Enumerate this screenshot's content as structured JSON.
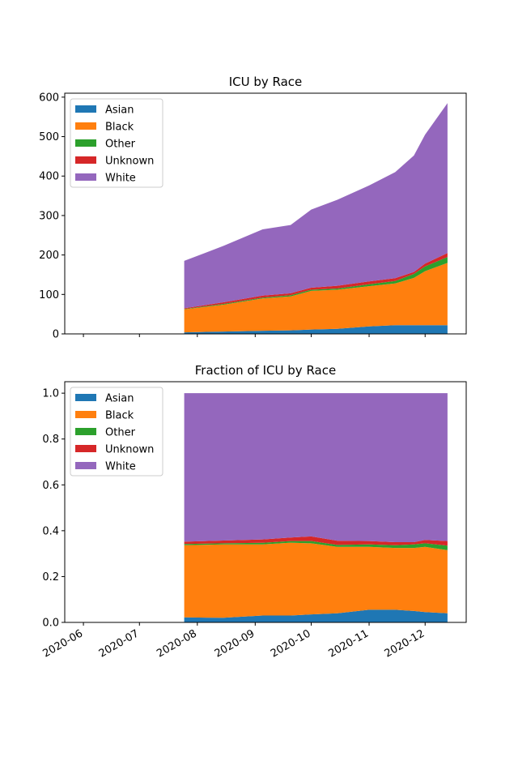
{
  "chart_data": [
    {
      "type": "area",
      "stacked": true,
      "title": "ICU by Race",
      "xlabel": "",
      "ylabel": "",
      "ylim": [
        0,
        610
      ],
      "yticks": [
        0,
        100,
        200,
        300,
        400,
        500,
        600
      ],
      "ytick_labels": [
        "0",
        "100",
        "200",
        "300",
        "400",
        "500",
        "600"
      ],
      "x": [
        "2020-07-25",
        "2020-08-15",
        "2020-09-05",
        "2020-09-20",
        "2020-10-01",
        "2020-10-15",
        "2020-11-01",
        "2020-11-15",
        "2020-11-25",
        "2020-12-01",
        "2020-12-13"
      ],
      "series": [
        {
          "name": "Asian",
          "values": [
            4,
            6,
            8,
            9,
            11,
            13,
            19,
            22,
            22,
            22,
            22
          ]
        },
        {
          "name": "Black",
          "values": [
            58,
            68,
            82,
            86,
            98,
            99,
            102,
            106,
            120,
            137,
            158
          ]
        },
        {
          "name": "Other",
          "values": [
            1,
            2,
            2,
            3,
            3,
            3,
            5,
            6,
            10,
            12,
            15
          ]
        },
        {
          "name": "Unknown",
          "values": [
            2,
            4,
            5,
            5,
            5,
            7,
            7,
            7,
            5,
            7,
            10
          ]
        },
        {
          "name": "White",
          "values": [
            120,
            143,
            168,
            173,
            198,
            218,
            243,
            269,
            295,
            327,
            380
          ]
        }
      ],
      "legend": "top-left",
      "grid": false
    },
    {
      "type": "area",
      "stacked": true,
      "title": "Fraction of ICU by Race",
      "xlabel": "",
      "ylabel": "",
      "ylim": [
        0,
        1.05
      ],
      "yticks": [
        0,
        0.2,
        0.4,
        0.6,
        0.8,
        1.0
      ],
      "ytick_labels": [
        "0.0",
        "0.2",
        "0.4",
        "0.6",
        "0.8",
        "1.0"
      ],
      "x": [
        "2020-07-25",
        "2020-08-15",
        "2020-09-05",
        "2020-09-20",
        "2020-10-01",
        "2020-10-15",
        "2020-11-01",
        "2020-11-15",
        "2020-11-25",
        "2020-12-01",
        "2020-12-13"
      ],
      "series": [
        {
          "name": "Asian",
          "values": [
            0.022,
            0.02,
            0.03,
            0.03,
            0.035,
            0.04,
            0.055,
            0.055,
            0.05,
            0.045,
            0.04
          ]
        },
        {
          "name": "Black",
          "values": [
            0.315,
            0.32,
            0.31,
            0.318,
            0.31,
            0.29,
            0.275,
            0.27,
            0.275,
            0.285,
            0.275
          ]
        },
        {
          "name": "Other",
          "values": [
            0.005,
            0.005,
            0.007,
            0.007,
            0.01,
            0.008,
            0.01,
            0.012,
            0.015,
            0.015,
            0.02
          ]
        },
        {
          "name": "Unknown",
          "values": [
            0.01,
            0.012,
            0.015,
            0.015,
            0.02,
            0.018,
            0.015,
            0.013,
            0.01,
            0.015,
            0.02
          ]
        },
        {
          "name": "White",
          "values": [
            0.648,
            0.643,
            0.638,
            0.63,
            0.625,
            0.644,
            0.645,
            0.65,
            0.65,
            0.64,
            0.645
          ]
        }
      ],
      "legend": "top-left",
      "grid": false
    }
  ],
  "x_axis": {
    "tick_dates": [
      "2020-06-01",
      "2020-07-01",
      "2020-08-01",
      "2020-09-01",
      "2020-10-01",
      "2020-11-01",
      "2020-12-01"
    ],
    "tick_labels": [
      "2020-06",
      "2020-07",
      "2020-08",
      "2020-09",
      "2020-10",
      "2020-11",
      "2020-12"
    ],
    "range": [
      "2020-05-22",
      "2020-12-23"
    ]
  },
  "colors": {
    "Asian": "#1f77b4",
    "Black": "#ff7f0e",
    "Other": "#2ca02c",
    "Unknown": "#d62728",
    "White": "#9467bd"
  }
}
